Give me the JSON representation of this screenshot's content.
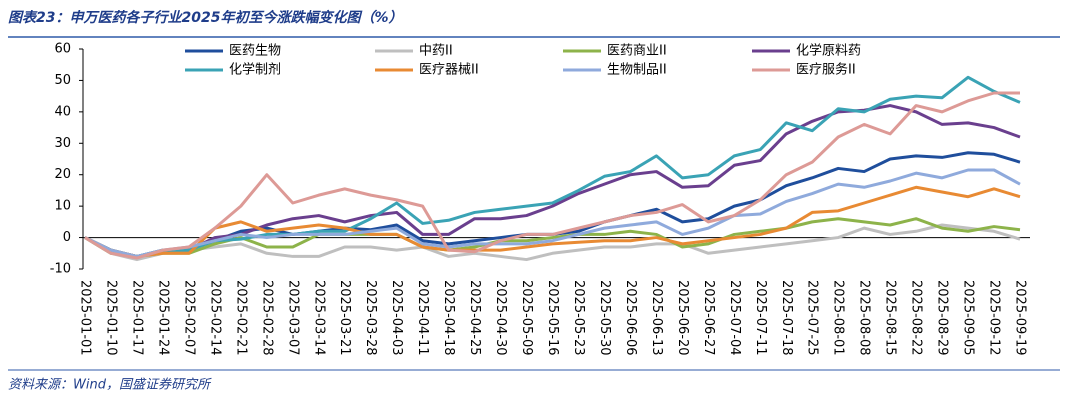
{
  "chart_data": {
    "type": "line",
    "title": "图表23：申万医药各子行业2025年初至今涨跌幅变化图（%）",
    "source": "资料来源：Wind，国盛证券研究所",
    "categories": [
      "2025-01-01",
      "2025-01-10",
      "2025-01-17",
      "2025-01-24",
      "2025-02-07",
      "2025-02-14",
      "2025-02-21",
      "2025-02-28",
      "2025-03-07",
      "2025-03-14",
      "2025-03-21",
      "2025-03-28",
      "2025-04-03",
      "2025-04-11",
      "2025-04-18",
      "2025-04-25",
      "2025-04-30",
      "2025-05-09",
      "2025-05-16",
      "2025-05-23",
      "2025-05-30",
      "2025-06-06",
      "2025-06-13",
      "2025-06-20",
      "2025-06-27",
      "2025-07-04",
      "2025-07-11",
      "2025-07-18",
      "2025-07-25",
      "2025-08-01",
      "2025-08-08",
      "2025-08-15",
      "2025-08-22",
      "2025-08-29",
      "2025-09-05",
      "2025-09-12",
      "2025-09-19"
    ],
    "ylim": [
      -10,
      60
    ],
    "yticks": [
      -10,
      0,
      10,
      20,
      30,
      40,
      50,
      60
    ],
    "series": [
      {
        "name": "医药生物",
        "color": "#1f4e9c",
        "values": [
          0,
          -4,
          -6,
          -4.5,
          -4,
          -1,
          2,
          3,
          1,
          2,
          3,
          2.5,
          4,
          -1,
          -2,
          -1,
          0,
          1,
          1,
          2,
          5,
          7,
          9,
          5,
          6,
          10,
          12,
          16.5,
          19,
          22,
          21,
          25,
          26,
          25.5,
          27,
          26.5,
          24
        ]
      },
      {
        "name": "中药II",
        "color": "#bfbfbf",
        "values": [
          0,
          -5,
          -7,
          -5,
          -4,
          -3,
          -2,
          -5,
          -6,
          -6,
          -3,
          -3,
          -4,
          -3,
          -6,
          -5,
          -6,
          -7,
          -5,
          -4,
          -3,
          -3,
          -2,
          -2,
          -5,
          -4,
          -3,
          -2,
          -1,
          0,
          3,
          1,
          2,
          4,
          3,
          2,
          -0.5
        ]
      },
      {
        "name": "医药商业II",
        "color": "#8db34a",
        "values": [
          0,
          -5,
          -6,
          -5,
          -5,
          -2,
          0,
          -3,
          -3,
          1,
          1,
          1,
          1,
          -3,
          -4,
          -3,
          -1,
          -1,
          0,
          1,
          1,
          2,
          1,
          -3,
          -2,
          1,
          2,
          3,
          5,
          6,
          5,
          4,
          6,
          3,
          2,
          3.5,
          2.5
        ]
      },
      {
        "name": "化学原料药",
        "color": "#6a3f8e",
        "values": [
          0,
          -4,
          -6,
          -4,
          -4,
          0,
          1,
          4,
          6,
          7,
          5,
          7,
          8,
          1,
          1,
          6,
          6,
          7,
          10,
          14,
          17,
          20,
          21,
          16,
          16.5,
          23,
          24.5,
          33,
          37,
          40,
          40.5,
          42,
          40,
          36,
          36.5,
          35,
          32
        ]
      },
      {
        "name": "化学制剂",
        "color": "#3aa3b5",
        "values": [
          0,
          -4,
          -6,
          -4,
          -4,
          -1,
          -0.5,
          1,
          1,
          2,
          2,
          6,
          11,
          4.5,
          5.5,
          8,
          9,
          10,
          11,
          15,
          19.5,
          21,
          26,
          19,
          20,
          26,
          28,
          36.5,
          34,
          41,
          40,
          44,
          45,
          44.5,
          51,
          46.5,
          43
        ]
      },
      {
        "name": "医疗器械II",
        "color": "#e88a33",
        "values": [
          0,
          -4,
          -6,
          -5,
          -5,
          3,
          5,
          2,
          3,
          4,
          3,
          1,
          1,
          -3,
          -4,
          -4,
          -4,
          -3,
          -2,
          -1.5,
          -1,
          -1,
          0,
          -2,
          -1,
          0,
          1,
          3,
          8,
          8.5,
          11,
          13.5,
          16,
          14.5,
          13,
          15.5,
          13
        ]
      },
      {
        "name": "生物制品II",
        "color": "#8faadc",
        "values": [
          0,
          -4,
          -6,
          -4,
          -3,
          -1,
          1,
          0,
          1,
          1,
          1,
          2,
          3,
          -2,
          -3,
          -2,
          -2,
          -2,
          -1,
          1,
          3,
          4,
          5,
          1,
          3,
          7,
          7.5,
          11.5,
          14,
          17,
          16,
          18,
          20.5,
          19,
          21.5,
          21.5,
          17
        ]
      },
      {
        "name": "医疗服务II",
        "color": "#dd9a96",
        "values": [
          0,
          -5,
          -6.5,
          -4,
          -3,
          3,
          10,
          20,
          11,
          13.5,
          15.5,
          13.5,
          12,
          10,
          -4,
          -4.5,
          -1,
          1,
          1,
          3,
          5,
          7,
          8,
          10.5,
          5,
          7,
          12,
          20,
          24,
          32,
          36,
          33,
          42,
          40,
          43.5,
          46,
          46
        ]
      }
    ]
  }
}
